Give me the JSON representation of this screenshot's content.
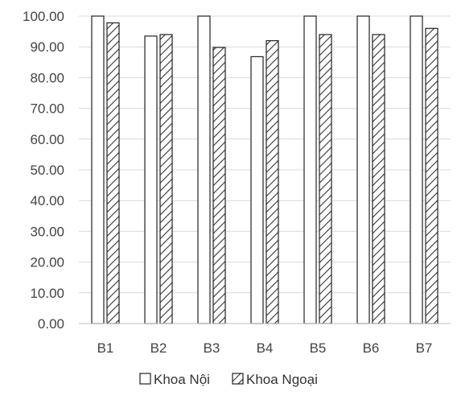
{
  "chart_data": {
    "type": "bar",
    "categories": [
      "B1",
      "B2",
      "B3",
      "B4",
      "B5",
      "B6",
      "B7"
    ],
    "series": [
      {
        "name": "Khoa Nội",
        "values": [
          100.0,
          93.5,
          100.0,
          86.8,
          100.0,
          100.0,
          100.0
        ],
        "pattern": "hollow",
        "color": "#ffffff"
      },
      {
        "name": "Khoa Ngoại",
        "values": [
          97.8,
          94.0,
          89.8,
          92.0,
          94.0,
          94.0,
          96.0
        ],
        "pattern": "hatched",
        "color": "#333333"
      }
    ],
    "ylim": [
      0,
      100
    ],
    "yticks": [
      "0.00",
      "10.00",
      "20.00",
      "30.00",
      "40.00",
      "50.00",
      "60.00",
      "70.00",
      "80.00",
      "90.00",
      "100.00"
    ],
    "grid": true,
    "legend": "bottom-center"
  }
}
